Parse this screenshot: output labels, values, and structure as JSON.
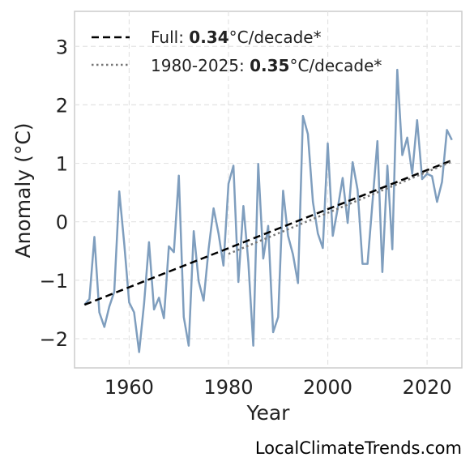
{
  "chart_data": {
    "type": "line",
    "xlabel": "Year",
    "ylabel": "Anomaly (°C)",
    "xlim": [
      1949,
      2027
    ],
    "ylim": [
      -2.5,
      3.6
    ],
    "xticks": [
      1960,
      1980,
      2000,
      2020
    ],
    "yticks": [
      -2,
      -1,
      0,
      1,
      2,
      3
    ],
    "grid": true,
    "legend_position": "top-left",
    "series": [
      {
        "color": "#7f9ebe",
        "style": "solid",
        "x": [
          1951,
          1952,
          1953,
          1954,
          1955,
          1956,
          1957,
          1958,
          1959,
          1960,
          1961,
          1962,
          1963,
          1964,
          1965,
          1966,
          1967,
          1968,
          1969,
          1970,
          1971,
          1972,
          1973,
          1974,
          1975,
          1976,
          1977,
          1978,
          1979,
          1980,
          1981,
          1982,
          1983,
          1984,
          1985,
          1986,
          1987,
          1988,
          1989,
          1990,
          1991,
          1992,
          1993,
          1994,
          1995,
          1996,
          1997,
          1998,
          1999,
          2000,
          2001,
          2002,
          2003,
          2004,
          2005,
          2006,
          2007,
          2008,
          2009,
          2010,
          2011,
          2012,
          2013,
          2014,
          2015,
          2016,
          2017,
          2018,
          2019,
          2020,
          2021,
          2022,
          2023,
          2024,
          2025
        ],
        "values": [
          -1.42,
          -1.32,
          -0.26,
          -1.55,
          -1.8,
          -1.45,
          -1.2,
          0.52,
          -0.37,
          -1.38,
          -1.55,
          -2.23,
          -1.4,
          -0.35,
          -1.5,
          -1.3,
          -1.65,
          -0.42,
          -0.52,
          0.79,
          -1.63,
          -2.12,
          -0.16,
          -1.02,
          -1.35,
          -0.46,
          0.23,
          -0.2,
          -0.75,
          0.65,
          0.96,
          -1.03,
          0.27,
          -0.69,
          -2.12,
          0.99,
          -0.63,
          -0.07,
          -1.89,
          -1.63,
          0.53,
          -0.24,
          -0.56,
          -1.05,
          1.81,
          1.5,
          0.34,
          -0.2,
          -0.45,
          1.34,
          -0.24,
          0.23,
          0.75,
          -0.02,
          1.02,
          0.55,
          -0.72,
          -0.72,
          0.33,
          1.38,
          -0.86,
          0.96,
          -0.47,
          2.6,
          1.14,
          1.44,
          0.82,
          1.74,
          0.73,
          0.82,
          0.78,
          0.34,
          0.68,
          1.57,
          1.4
        ]
      },
      {
        "name": "Full: 0.34°C/decade*",
        "color": "#000000",
        "style": "dashed",
        "x": [
          1951,
          2025
        ],
        "values": [
          -1.42,
          1.05
        ]
      },
      {
        "name": "1980-2025: 0.35°C/decade*",
        "color": "#777777",
        "style": "dotted",
        "x": [
          1980,
          2025
        ],
        "values": [
          -0.55,
          1.03
        ]
      }
    ],
    "legend": [
      {
        "prefix": "Full: ",
        "value": "0.34",
        "suffix": "°C/decade*"
      },
      {
        "prefix": "1980-2025: ",
        "value": "0.35",
        "suffix": "°C/decade*"
      }
    ]
  },
  "credit": "LocalClimateTrends.com"
}
